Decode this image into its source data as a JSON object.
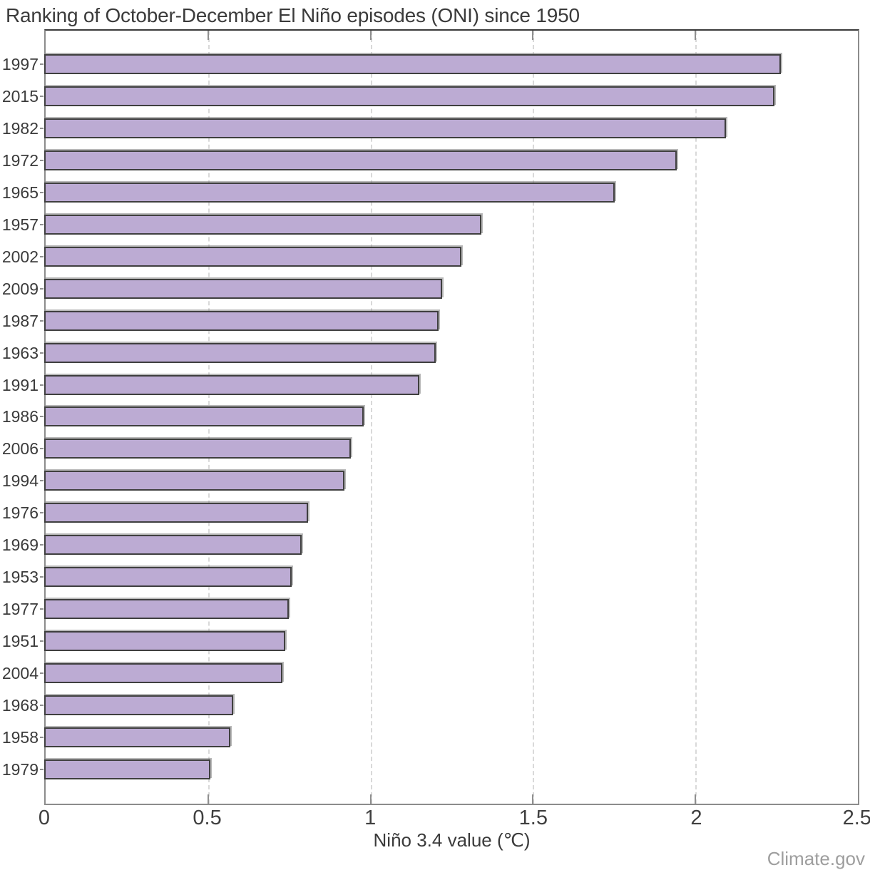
{
  "title": "Ranking of October-December El Niño episodes (ONI) since 1950",
  "watermark": "Climate.gov",
  "colors": {
    "bar_fill": "#bcabd3",
    "bar_border": "#3f3f3f",
    "bar_shadow": "#7d7d7d",
    "gridline": "#d9d9d9",
    "spine_top": "#3a3a3a",
    "spine_gray": "#8c8c8c",
    "text": "#3b3b3b",
    "watermark_text": "#9e9e9e"
  },
  "chart_data": {
    "type": "bar",
    "orientation": "horizontal",
    "title": "Ranking of October-December El Niño episodes (ONI) since 1950",
    "categories": [
      "1997",
      "2015",
      "1982",
      "1972",
      "1965",
      "1957",
      "2002",
      "2009",
      "1987",
      "1963",
      "1991",
      "1986",
      "2006",
      "1994",
      "1976",
      "1969",
      "1953",
      "1977",
      "1951",
      "2004",
      "1968",
      "1958",
      "1979"
    ],
    "values": [
      2.26,
      2.24,
      2.09,
      1.94,
      1.75,
      1.34,
      1.28,
      1.22,
      1.21,
      1.2,
      1.15,
      0.98,
      0.94,
      0.92,
      0.81,
      0.79,
      0.76,
      0.75,
      0.74,
      0.73,
      0.58,
      0.57,
      0.51
    ],
    "xlabel": "Niño 3.4 value (℃)",
    "ylabel": "",
    "xlim": [
      0,
      2.5
    ],
    "xticks": [
      0,
      0.5,
      1,
      1.5,
      2,
      2.5
    ],
    "xtick_labels": [
      "0",
      "0.5",
      "1",
      "1.5",
      "2",
      "2.5"
    ],
    "grid": "vertical dashed gridlines at interior ticks",
    "legend": "none",
    "bar_color": "#bcabd3",
    "bar_border_color": "#3f3f3f"
  }
}
